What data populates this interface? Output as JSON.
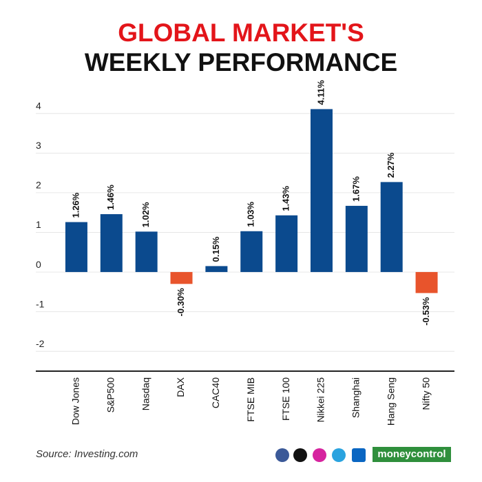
{
  "chart_data": {
    "type": "bar",
    "title": "GLOBAL MARKET'S",
    "subtitle": "WEEKLY PERFORMANCE",
    "categories": [
      "Dow Jones",
      "S&P500",
      "Nasdaq",
      "DAX",
      "CAC40",
      "FTSE MIB",
      "FTSE 100",
      "Nikkei 225",
      "Shanghai",
      "Hang Seng",
      "Nifty 50"
    ],
    "values": [
      1.26,
      1.46,
      1.02,
      -0.3,
      0.15,
      1.03,
      1.43,
      4.11,
      1.67,
      2.27,
      -0.53
    ],
    "value_labels": [
      "1.26%",
      "1.46%",
      "1.02%",
      "-0.30%",
      "0.15%",
      "1.03%",
      "1.43%",
      "4.11%",
      "1.67%",
      "2.27%",
      "-0.53%"
    ],
    "colors": {
      "positive": "#0b4a8e",
      "negative": "#e8542c"
    },
    "ylim": [
      -2.5,
      4.5
    ],
    "yticks": [
      -2,
      -1,
      0,
      1,
      2,
      3,
      4
    ],
    "grid": true,
    "source": "Source: Investing.com",
    "brand": "moneycontrol"
  }
}
